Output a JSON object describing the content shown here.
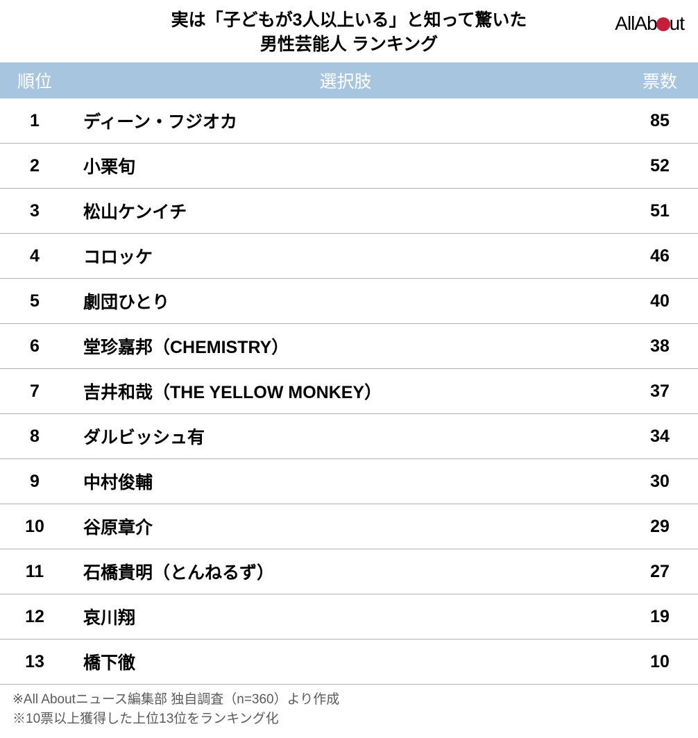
{
  "title": {
    "line1": "実は「子どもが3人以上いる」と知って驚いた",
    "line2": "男性芸能人 ランキング"
  },
  "logo": {
    "part1": "All",
    "part2": "Ab",
    "part3": "ut"
  },
  "table": {
    "columns": {
      "rank": "順位",
      "name": "選択肢",
      "votes": "票数"
    },
    "header_bg": "#a8c5e0",
    "header_text_color": "#ffffff",
    "row_border_color": "#b0b0b0",
    "cell_text_color": "#000000",
    "font_size_header": 25,
    "font_size_cell": 25,
    "rows": [
      {
        "rank": "1",
        "name": "ディーン・フジオカ",
        "votes": "85"
      },
      {
        "rank": "2",
        "name": "小栗旬",
        "votes": "52"
      },
      {
        "rank": "3",
        "name": "松山ケンイチ",
        "votes": "51"
      },
      {
        "rank": "4",
        "name": "コロッケ",
        "votes": "46"
      },
      {
        "rank": "5",
        "name": "劇団ひとり",
        "votes": "40"
      },
      {
        "rank": "6",
        "name": "堂珍嘉邦（CHEMISTRY）",
        "votes": "38"
      },
      {
        "rank": "7",
        "name": "吉井和哉（THE YELLOW MONKEY）",
        "votes": "37"
      },
      {
        "rank": "8",
        "name": "ダルビッシュ有",
        "votes": "34"
      },
      {
        "rank": "9",
        "name": "中村俊輔",
        "votes": "30"
      },
      {
        "rank": "10",
        "name": "谷原章介",
        "votes": "29"
      },
      {
        "rank": "11",
        "name": "石橋貴明（とんねるず）",
        "votes": "27"
      },
      {
        "rank": "12",
        "name": "哀川翔",
        "votes": "19"
      },
      {
        "rank": "13",
        "name": "橋下徹",
        "votes": "10"
      }
    ]
  },
  "footnotes": {
    "line1": "※All Aboutニュース編集部 独自調査（n=360）より作成",
    "line2": "※10票以上獲得した上位13位をランキング化",
    "text_color": "#5a5a5a",
    "font_size": 19
  },
  "colors": {
    "background": "#ffffff",
    "logo_dot": "#c41e3a",
    "title_text": "#000000"
  }
}
